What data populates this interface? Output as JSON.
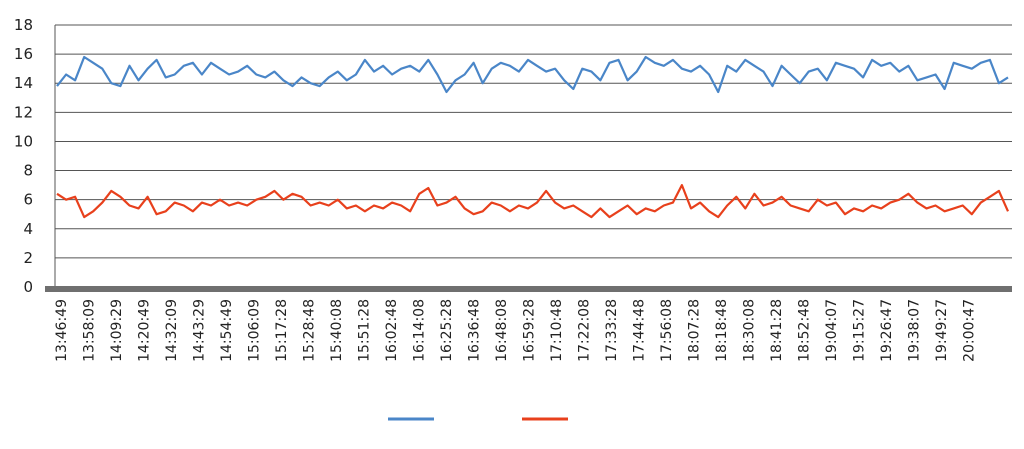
{
  "chart_data": {
    "type": "line",
    "title": "",
    "xlabel": "",
    "ylabel": "",
    "ylim": [
      0,
      18
    ],
    "yticks": [
      0,
      2,
      4,
      6,
      8,
      10,
      12,
      14,
      16,
      18
    ],
    "grid": "horizontal",
    "legend": "bottom-center",
    "x_tick_labels": [
      "13:46:49",
      "13:58:09",
      "14:09:29",
      "14:20:49",
      "14:32:09",
      "14:43:29",
      "14:54:49",
      "15:06:09",
      "15:17:28",
      "15:28:48",
      "15:40:08",
      "15:51:28",
      "16:02:48",
      "16:14:08",
      "16:25:28",
      "16:36:48",
      "16:48:08",
      "16:59:28",
      "17:10:48",
      "17:22:08",
      "17:33:28",
      "17:44:48",
      "17:56:08",
      "18:07:28",
      "18:18:48",
      "18:30:08",
      "18:41:28",
      "18:52:48",
      "19:04:07",
      "19:15:27",
      "19:26:47",
      "19:38:07",
      "19:49:27",
      "20:00:47"
    ],
    "series": [
      {
        "color": "#4a86c8",
        "values": [
          13.8,
          14.6,
          14.2,
          15.8,
          15.4,
          15.0,
          14.0,
          13.8,
          15.2,
          14.2,
          15.0,
          15.6,
          14.4,
          14.6,
          15.2,
          15.4,
          14.6,
          15.4,
          15.0,
          14.6,
          14.8,
          15.2,
          14.6,
          14.4,
          14.8,
          14.2,
          13.8,
          14.4,
          14.0,
          13.8,
          14.4,
          14.8,
          14.2,
          14.6,
          15.6,
          14.8,
          15.2,
          14.6,
          15.0,
          15.2,
          14.8,
          15.6,
          14.6,
          13.4,
          14.2,
          14.6,
          15.4,
          14.0,
          15.0,
          15.4,
          15.2,
          14.8,
          15.6,
          15.2,
          14.8,
          15.0,
          14.2,
          13.6,
          15.0,
          14.8,
          14.2,
          15.4,
          15.6,
          14.2,
          14.8,
          15.8,
          15.4,
          15.2,
          15.6,
          15.0,
          14.8,
          15.2,
          14.6,
          13.4,
          15.2,
          14.8,
          15.6,
          15.2,
          14.8,
          13.8,
          15.2,
          14.6,
          14.0,
          14.8,
          15.0,
          14.2,
          15.4,
          15.2,
          15.0,
          14.4,
          15.6,
          15.2,
          15.4,
          14.8,
          15.2,
          14.2,
          14.4,
          14.6,
          13.6,
          15.4,
          15.2,
          15.0,
          15.4,
          15.6,
          14.0,
          14.4
        ]
      },
      {
        "color": "#e8401c",
        "values": [
          6.4,
          6.0,
          6.2,
          4.8,
          5.2,
          5.8,
          6.6,
          6.2,
          5.6,
          5.4,
          6.2,
          5.0,
          5.2,
          5.8,
          5.6,
          5.2,
          5.8,
          5.6,
          6.0,
          5.6,
          5.8,
          5.6,
          6.0,
          6.2,
          6.6,
          6.0,
          6.4,
          6.2,
          5.6,
          5.8,
          5.6,
          6.0,
          5.4,
          5.6,
          5.2,
          5.6,
          5.4,
          5.8,
          5.6,
          5.2,
          6.4,
          6.8,
          5.6,
          5.8,
          6.2,
          5.4,
          5.0,
          5.2,
          5.8,
          5.6,
          5.2,
          5.6,
          5.4,
          5.8,
          6.6,
          5.8,
          5.4,
          5.6,
          5.2,
          4.8,
          5.4,
          4.8,
          5.2,
          5.6,
          5.0,
          5.4,
          5.2,
          5.6,
          5.8,
          7.0,
          5.4,
          5.8,
          5.2,
          4.8,
          5.6,
          6.2,
          5.4,
          6.4,
          5.6,
          5.8,
          6.2,
          5.6,
          5.4,
          5.2,
          6.0,
          5.6,
          5.8,
          5.0,
          5.4,
          5.2,
          5.6,
          5.4,
          5.8,
          6.0,
          6.4,
          5.8,
          5.4,
          5.6,
          5.2,
          5.4,
          5.6,
          5.0,
          5.8,
          6.2,
          6.6,
          5.2
        ]
      }
    ]
  }
}
